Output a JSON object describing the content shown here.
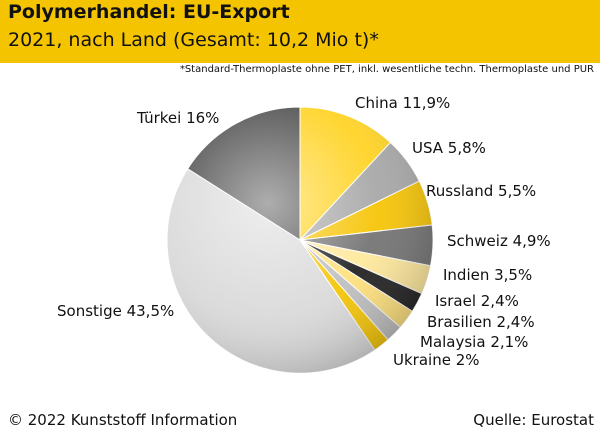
{
  "header": {
    "title": "Polymerhandel: EU-Export",
    "subtitle": "2021, nach Land (Gesamt: 10,2 Mio t)*",
    "footnote": "*Standard-Thermoplaste ohne PET, inkl. wesentliche techn. Thermoplaste und PUR",
    "background_color": "#f5c400"
  },
  "footer": {
    "copyright": "© 2022 Kunststoff Information",
    "source": "Quelle: Eurostat"
  },
  "chart_data": {
    "type": "pie",
    "title": "Polymerhandel: EU-Export",
    "unit": "%",
    "start_angle_deg": 0,
    "direction": "clockwise",
    "slices": [
      {
        "label": "China 11,9%",
        "name": "China",
        "value": 11.9,
        "color": "#ffd21f"
      },
      {
        "label": "USA 5,8%",
        "name": "USA",
        "value": 5.8,
        "color": "#a5a5a5"
      },
      {
        "label": "Russland 5,5%",
        "name": "Russland",
        "value": 5.5,
        "color": "#f6c300"
      },
      {
        "label": "Schweiz 4,9%",
        "name": "Schweiz",
        "value": 4.9,
        "color": "#707070"
      },
      {
        "label": "Indien 3,5%",
        "name": "Indien",
        "value": 3.5,
        "color": "#ffe89a"
      },
      {
        "label": "Israel 2,4%",
        "name": "Israel",
        "value": 2.4,
        "color": "#1c1c1c"
      },
      {
        "label": "Brasilien 2,4%",
        "name": "Brasilien",
        "value": 2.4,
        "color": "#ffe07a"
      },
      {
        "label": "Malaysia 2,1%",
        "name": "Malaysia",
        "value": 2.1,
        "color": "#bdbdbd"
      },
      {
        "label": "Ukraine 2%",
        "name": "Ukraine",
        "value": 2.0,
        "color": "#f5c400"
      },
      {
        "label": "Sonstige 43,5%",
        "name": "Sonstige",
        "value": 43.5,
        "color": "#d9d9d9"
      },
      {
        "label": "Türkei 16%",
        "name": "Türkei",
        "value": 16.0,
        "color": "#4a4a4a"
      }
    ]
  }
}
